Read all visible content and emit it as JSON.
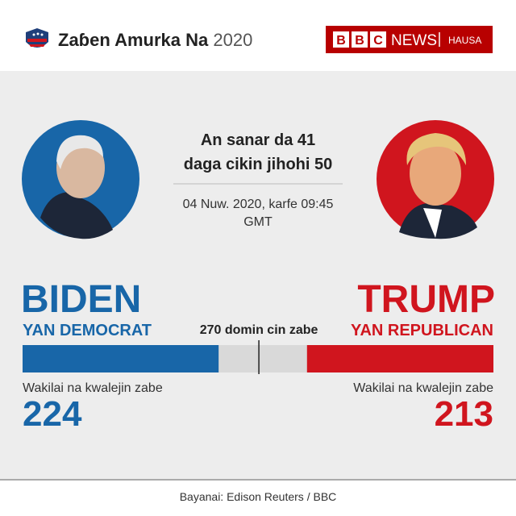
{
  "header": {
    "title": "Zaɓen Amurka Na",
    "year": "2020",
    "brand_letters": [
      "B",
      "B",
      "C"
    ],
    "news": "NEWS",
    "service": "HAUSA"
  },
  "status": {
    "line1": "An sanar da 41",
    "line2": "daga cikin jihohi 50",
    "time": "04 Nuw. 2020, karfe 09:45",
    "zone": "GMT"
  },
  "chart_data": {
    "type": "bar",
    "xlim": [
      0,
      538
    ],
    "remainder_color": "#d9d9d9",
    "threshold": {
      "label": "270 domin cin zabe",
      "value": 270
    },
    "series": [
      {
        "name": "BIDEN",
        "party": "YAN DEMOCRAT",
        "caption": "Wakilai na kwalejin zabe",
        "value": 224,
        "color": "#1866a8",
        "side": "left"
      },
      {
        "name": "TRUMP",
        "party": "YAN REPUBLICAN",
        "caption": "Wakilai na kwalejin zabe",
        "value": 213,
        "color": "#d0151e",
        "side": "right"
      }
    ]
  },
  "footer": {
    "source": "Bayanai: Edison Reuters / BBC"
  }
}
